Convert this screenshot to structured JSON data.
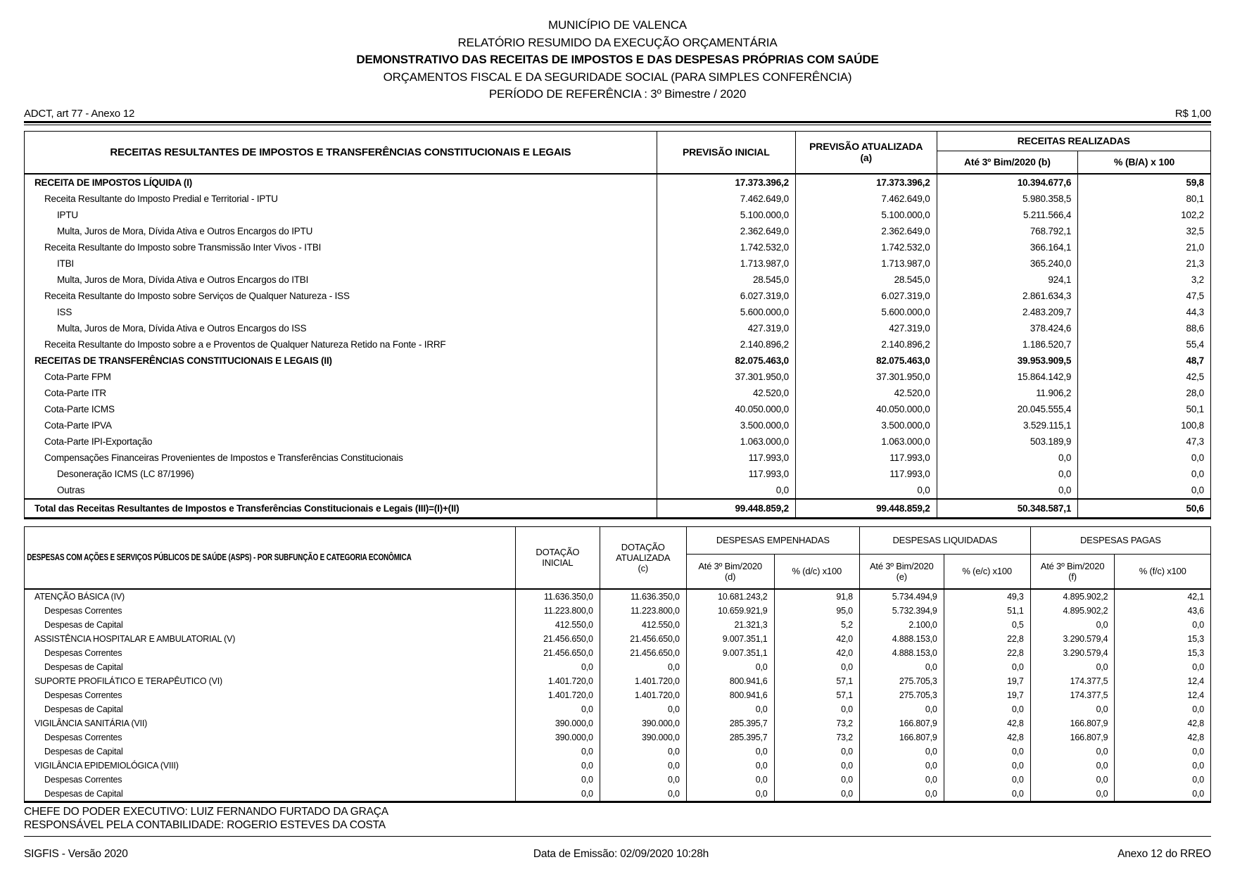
{
  "header": {
    "municipality": "MUNICÍPIO DE VALENCA",
    "report": "RELATÓRIO RESUMIDO DA EXECUÇÃO ORÇAMENTÁRIA",
    "title": "DEMONSTRATIVO DAS RECEITAS DE IMPOSTOS E DAS DESPESAS PRÓPRIAS COM SAÚDE",
    "scope": "ORÇAMENTOS FISCAL E DA SEGURIDADE SOCIAL (PARA SIMPLES CONFERÊNCIA)",
    "period": "PERÍODO DE REFERÊNCIA : 3º Bimestre / 2020",
    "annex_ref": "ADCT, art 77 - Anexo 12",
    "currency_unit": "R$ 1,00"
  },
  "receitas_table": {
    "col_label": "RECEITAS RESULTANTES DE IMPOSTOS E TRANSFERÊNCIAS CONSTITUCIONAIS E LEGAIS",
    "col_previsao_inicial": "PREVISÃO INICIAL",
    "col_previsao_atualizada": [
      "PREVISÃO ATUALIZADA",
      "(a)"
    ],
    "group_realizadas": "RECEITAS REALIZADAS",
    "col_realizadas_b": "Até 3º Bim/2020   (b)",
    "col_pct_ba": "% (B/A) x 100",
    "rows": [
      {
        "label": "RECEITA DE IMPOSTOS LÍQUIDA (I)",
        "indent": 0,
        "bold": true,
        "values": [
          "17.373.396,2",
          "17.373.396,2",
          "10.394.677,6",
          "59,8"
        ]
      },
      {
        "label": "Receita Resultante do Imposto Predial e Territorial - IPTU",
        "indent": 1,
        "bold": false,
        "values": [
          "7.462.649,0",
          "7.462.649,0",
          "5.980.358,5",
          "80,1"
        ]
      },
      {
        "label": "IPTU",
        "indent": 2,
        "bold": false,
        "values": [
          "5.100.000,0",
          "5.100.000,0",
          "5.211.566,4",
          "102,2"
        ]
      },
      {
        "label": "Multa, Juros de Mora, Dívida Ativa e Outros Encargos do IPTU",
        "indent": 2,
        "bold": false,
        "values": [
          "2.362.649,0",
          "2.362.649,0",
          "768.792,1",
          "32,5"
        ]
      },
      {
        "label": "Receita Resultante do Imposto sobre Transmissão Inter  Vivos - ITBI",
        "indent": 1,
        "bold": false,
        "values": [
          "1.742.532,0",
          "1.742.532,0",
          "366.164,1",
          "21,0"
        ]
      },
      {
        "label": "ITBI",
        "indent": 2,
        "bold": false,
        "values": [
          "1.713.987,0",
          "1.713.987,0",
          "365.240,0",
          "21,3"
        ]
      },
      {
        "label": "Multa, Juros de Mora, Dívida Ativa e Outros Encargos do ITBI",
        "indent": 2,
        "bold": false,
        "values": [
          "28.545,0",
          "28.545,0",
          "924,1",
          "3,2"
        ]
      },
      {
        "label": "Receita Resultante do Imposto sobre Serviços de Qualquer Natureza - ISS",
        "indent": 1,
        "bold": false,
        "values": [
          "6.027.319,0",
          "6.027.319,0",
          "2.861.634,3",
          "47,5"
        ]
      },
      {
        "label": "ISS",
        "indent": 2,
        "bold": false,
        "values": [
          "5.600.000,0",
          "5.600.000,0",
          "2.483.209,7",
          "44,3"
        ]
      },
      {
        "label": "Multa, Juros de Mora, Dívida Ativa e Outros Encargos do ISS",
        "indent": 2,
        "bold": false,
        "values": [
          "427.319,0",
          "427.319,0",
          "378.424,6",
          "88,6"
        ]
      },
      {
        "label": "Receita Resultante do Imposto sobre a e Proventos de Qualquer Natureza Retido na Fonte - IRRF",
        "indent": 1,
        "bold": false,
        "values": [
          "2.140.896,2",
          "2.140.896,2",
          "1.186.520,7",
          "55,4"
        ]
      },
      {
        "label": "RECEITAS DE TRANSFERÊNCIAS CONSTITUCIONAIS E LEGAIS (II)",
        "indent": 0,
        "bold": true,
        "values": [
          "82.075.463,0",
          "82.075.463,0",
          "39.953.909,5",
          "48,7"
        ]
      },
      {
        "label": "Cota-Parte FPM",
        "indent": 1,
        "bold": false,
        "values": [
          "37.301.950,0",
          "37.301.950,0",
          "15.864.142,9",
          "42,5"
        ]
      },
      {
        "label": "Cota-Parte ITR",
        "indent": 1,
        "bold": false,
        "values": [
          "42.520,0",
          "42.520,0",
          "11.906,2",
          "28,0"
        ]
      },
      {
        "label": "Cota-Parte ICMS",
        "indent": 1,
        "bold": false,
        "values": [
          "40.050.000,0",
          "40.050.000,0",
          "20.045.555,4",
          "50,1"
        ]
      },
      {
        "label": "Cota-Parte IPVA",
        "indent": 1,
        "bold": false,
        "values": [
          "3.500.000,0",
          "3.500.000,0",
          "3.529.115,1",
          "100,8"
        ]
      },
      {
        "label": "Cota-Parte IPI-Exportação",
        "indent": 1,
        "bold": false,
        "values": [
          "1.063.000,0",
          "1.063.000,0",
          "503.189,9",
          "47,3"
        ]
      },
      {
        "label": "Compensações Financeiras Provenientes de Impostos e Transferências Constitucionais",
        "indent": 1,
        "bold": false,
        "values": [
          "117.993,0",
          "117.993,0",
          "0,0",
          "0,0"
        ]
      },
      {
        "label": "Desoneração ICMS (LC 87/1996)",
        "indent": 2,
        "bold": false,
        "values": [
          "117.993,0",
          "117.993,0",
          "0,0",
          "0,0"
        ]
      },
      {
        "label": "Outras",
        "indent": 2,
        "bold": false,
        "values": [
          "0,0",
          "0,0",
          "0,0",
          "0,0"
        ]
      }
    ],
    "total": {
      "label": "Total das Receitas Resultantes de Impostos e Transferências Constitucionais e Legais (III)=(I)+(II)",
      "values": [
        "99.448.859,2",
        "99.448.859,2",
        "50.348.587,1",
        "50,6"
      ]
    }
  },
  "despesas_table": {
    "col_label": "DESPESAS COM AÇÕES E SERVIÇOS PÚBLICOS DE SAÚDE (ASPS) - POR SUBFUNÇÃO E CATEGORIA ECONÔMICA",
    "col_dotacao_inicial": [
      "DOTAÇÃO",
      "INICIAL"
    ],
    "col_dotacao_atualizada": [
      "DOTAÇÃO",
      "ATUALIZADA",
      "(c)"
    ],
    "groups": [
      {
        "name": "DESPESAS EMPENHADAS",
        "sub_period": [
          "Até 3º Bim/2020",
          "(d)"
        ],
        "sub_pct": "% (d/c) x100"
      },
      {
        "name": "DESPESAS LIQUIDADAS",
        "sub_period": [
          "Até 3º Bim/2020",
          "(e)"
        ],
        "sub_pct": "% (e/c) x100"
      },
      {
        "name": "DESPESAS PAGAS",
        "sub_period": [
          "Até 3º Bim/2020",
          "(f)"
        ],
        "sub_pct": "% (f/c) x100"
      }
    ],
    "rows": [
      {
        "label": "ATENÇÃO BÁSICA (IV)",
        "indent": 0,
        "bold": false,
        "values": [
          "11.636.350,0",
          "11.636.350,0",
          "10.681.243,2",
          "91,8",
          "5.734.494,9",
          "49,3",
          "4.895.902,2",
          "42,1"
        ]
      },
      {
        "label": "Despesas Correntes",
        "indent": 1,
        "bold": false,
        "values": [
          "11.223.800,0",
          "11.223.800,0",
          "10.659.921,9",
          "95,0",
          "5.732.394,9",
          "51,1",
          "4.895.902,2",
          "43,6"
        ]
      },
      {
        "label": "Despesas de Capital",
        "indent": 1,
        "bold": false,
        "values": [
          "412.550,0",
          "412.550,0",
          "21.321,3",
          "5,2",
          "2.100,0",
          "0,5",
          "0,0",
          "0,0"
        ]
      },
      {
        "label": "ASSISTÊNCIA HOSPITALAR E AMBULATORIAL (V)",
        "indent": 0,
        "bold": false,
        "values": [
          "21.456.650,0",
          "21.456.650,0",
          "9.007.351,1",
          "42,0",
          "4.888.153,0",
          "22,8",
          "3.290.579,4",
          "15,3"
        ]
      },
      {
        "label": "Despesas Correntes",
        "indent": 1,
        "bold": false,
        "values": [
          "21.456.650,0",
          "21.456.650,0",
          "9.007.351,1",
          "42,0",
          "4.888.153,0",
          "22,8",
          "3.290.579,4",
          "15,3"
        ]
      },
      {
        "label": "Despesas de Capital",
        "indent": 1,
        "bold": false,
        "values": [
          "0,0",
          "0,0",
          "0,0",
          "0,0",
          "0,0",
          "0,0",
          "0,0",
          "0,0"
        ]
      },
      {
        "label": "SUPORTE PROFILÁTICO E TERAPÊUTICO (VI)",
        "indent": 0,
        "bold": false,
        "values": [
          "1.401.720,0",
          "1.401.720,0",
          "800.941,6",
          "57,1",
          "275.705,3",
          "19,7",
          "174.377,5",
          "12,4"
        ]
      },
      {
        "label": "Despesas Correntes",
        "indent": 1,
        "bold": false,
        "values": [
          "1.401.720,0",
          "1.401.720,0",
          "800.941,6",
          "57,1",
          "275.705,3",
          "19,7",
          "174.377,5",
          "12,4"
        ]
      },
      {
        "label": "Despesas de Capital",
        "indent": 1,
        "bold": false,
        "values": [
          "0,0",
          "0,0",
          "0,0",
          "0,0",
          "0,0",
          "0,0",
          "0,0",
          "0,0"
        ]
      },
      {
        "label": "VIGILÂNCIA SANITÁRIA (VII)",
        "indent": 0,
        "bold": false,
        "values": [
          "390.000,0",
          "390.000,0",
          "285.395,7",
          "73,2",
          "166.807,9",
          "42,8",
          "166.807,9",
          "42,8"
        ]
      },
      {
        "label": "Despesas Correntes",
        "indent": 1,
        "bold": false,
        "values": [
          "390.000,0",
          "390.000,0",
          "285.395,7",
          "73,2",
          "166.807,9",
          "42,8",
          "166.807,9",
          "42,8"
        ]
      },
      {
        "label": "Despesas de Capital",
        "indent": 1,
        "bold": false,
        "values": [
          "0,0",
          "0,0",
          "0,0",
          "0,0",
          "0,0",
          "0,0",
          "0,0",
          "0,0"
        ]
      },
      {
        "label": "VIGILÂNCIA EPIDEMIOLÓGICA (VIII)",
        "indent": 0,
        "bold": false,
        "values": [
          "0,0",
          "0,0",
          "0,0",
          "0,0",
          "0,0",
          "0,0",
          "0,0",
          "0,0"
        ]
      },
      {
        "label": "Despesas Correntes",
        "indent": 1,
        "bold": false,
        "values": [
          "0,0",
          "0,0",
          "0,0",
          "0,0",
          "0,0",
          "0,0",
          "0,0",
          "0,0"
        ]
      },
      {
        "label": "Despesas de Capital",
        "indent": 1,
        "bold": false,
        "values": [
          "0,0",
          "0,0",
          "0,0",
          "0,0",
          "0,0",
          "0,0",
          "0,0",
          "0,0"
        ]
      }
    ]
  },
  "footer": {
    "chief": "CHEFE DO PODER EXECUTIVO: LUIZ FERNANDO FURTADO DA GRAÇA",
    "accountant": "RESPONSÁVEL PELA CONTABILIDADE: ROGERIO ESTEVES DA COSTA",
    "system_version": "SIGFIS - Versão 2020",
    "emission": "Data de Emissão: 02/09/2020   10:28h",
    "annex": "Anexo 12 do RREO"
  }
}
